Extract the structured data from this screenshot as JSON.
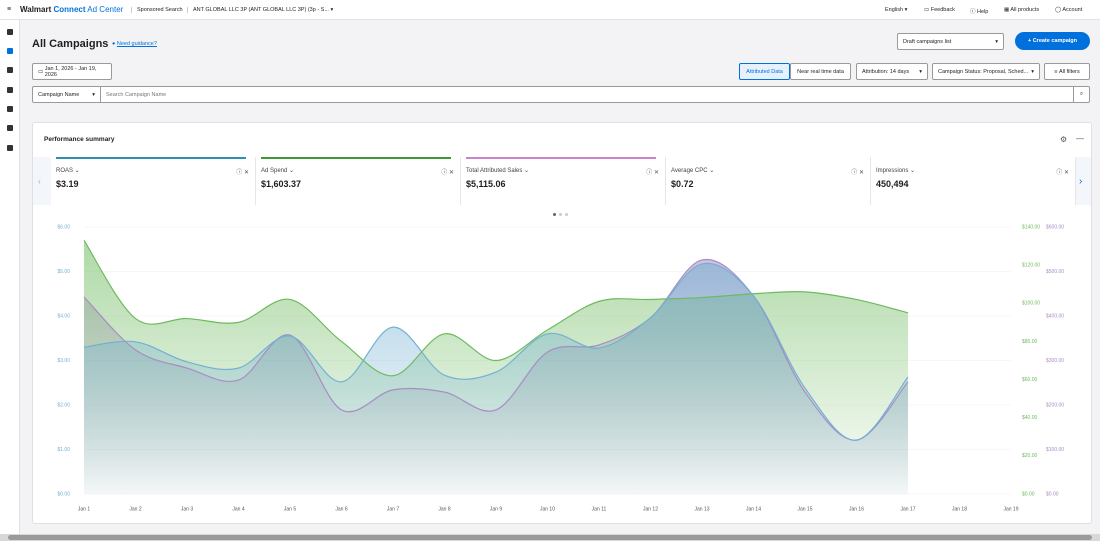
{
  "header": {
    "brand": "Walmart",
    "brand_connect": "Connect",
    "product": "Ad Center",
    "section": "Sponsored Search",
    "account": "ANT GLOBAL LLC 3P (ANT GLOBAL LLC 3P) (3p - S...",
    "links": [
      "English",
      "Feedback",
      "Help",
      "All products",
      "Account"
    ]
  },
  "page": {
    "title": "All Campaigns",
    "guidance": "Need guidance?",
    "list_select": "Draft campaigns list",
    "create_button": "Create campaign"
  },
  "filters": {
    "date_range": "Jan 1, 2026 - Jan 19, 2026",
    "data_toggle": [
      "Attributed Data",
      "Near real time data"
    ],
    "attribution": "Attribution: 14 days",
    "status": "Campaign Status: Proposal, Sched...",
    "all_filters": "All filters"
  },
  "search": {
    "field": "Campaign Name",
    "placeholder": "Search Campaign Name"
  },
  "summary": {
    "title": "Performance summary",
    "cards": [
      {
        "label": "ROAS",
        "value": "$3.19"
      },
      {
        "label": "Ad Spend",
        "value": "$1,603.37"
      },
      {
        "label": "Total Attributed Sales",
        "value": "$5,115.06"
      },
      {
        "label": "Average CPC",
        "value": "$0.72"
      },
      {
        "label": "Impressions",
        "value": "450,494"
      }
    ]
  },
  "chart_data": {
    "type": "line",
    "grid": true,
    "categories": [
      "Jan 1",
      "Jan 2",
      "Jan 3",
      "Jan 4",
      "Jan 5",
      "Jan 6",
      "Jan 7",
      "Jan 8",
      "Jan 9",
      "Jan 10",
      "Jan 11",
      "Jan 12",
      "Jan 13",
      "Jan 14",
      "Jan 15",
      "Jan 16",
      "Jan 17",
      "Jan 18",
      "Jan 19"
    ],
    "ylim": [
      0,
      6
    ],
    "yticks": [
      {
        "value": 0,
        "label": "$0.00"
      },
      {
        "value": 1,
        "label": "$1.00"
      },
      {
        "value": 2,
        "label": "$2.00"
      },
      {
        "value": 3,
        "label": "$3.00"
      },
      {
        "value": 4,
        "label": "$4.00"
      },
      {
        "value": 5,
        "label": "$5.00"
      },
      {
        "value": 6,
        "label": "$6.00"
      }
    ],
    "y2lim": [
      0,
      140
    ],
    "y2ticks": [
      {
        "value": 0,
        "label": "$0.00"
      },
      {
        "value": 20,
        "label": "$20.00"
      },
      {
        "value": 40,
        "label": "$40.00"
      },
      {
        "value": 60,
        "label": "$60.00"
      },
      {
        "value": 80,
        "label": "$80.00"
      },
      {
        "value": 100,
        "label": "$100.00"
      },
      {
        "value": 120,
        "label": "$120.00"
      },
      {
        "value": 140,
        "label": "$140.00"
      }
    ],
    "y3lim": [
      0,
      600
    ],
    "y3ticks": [
      {
        "value": 0,
        "label": "$0.00"
      },
      {
        "value": 100,
        "label": "$100.00"
      },
      {
        "value": 200,
        "label": "$200.00"
      },
      {
        "value": 300,
        "label": "$300.00"
      },
      {
        "value": 400,
        "label": "$400.00"
      },
      {
        "value": 500,
        "label": "$500.00"
      },
      {
        "value": 600,
        "label": "$600.00"
      }
    ],
    "series": [
      {
        "color": "#a98cc4",
        "axis": "y3",
        "values": [
          443,
          324,
          283,
          256,
          357,
          189,
          234,
          229,
          189,
          319,
          335,
          396,
          526,
          445,
          229,
          121,
          252,
          null,
          null
        ]
      },
      {
        "color": "#6dba5e",
        "axis": "y2",
        "values": [
          133,
          92,
          92,
          90,
          102,
          80,
          62,
          84,
          70,
          86,
          101,
          102,
          103,
          105,
          106,
          102,
          95,
          null,
          null
        ]
      },
      {
        "color": "#73b1d2",
        "axis": "y",
        "values": [
          3.3,
          3.42,
          2.97,
          2.83,
          3.55,
          2.52,
          3.75,
          2.67,
          2.74,
          3.6,
          3.28,
          3.96,
          5.17,
          4.45,
          2.38,
          1.21,
          2.63,
          null,
          null
        ]
      }
    ]
  }
}
